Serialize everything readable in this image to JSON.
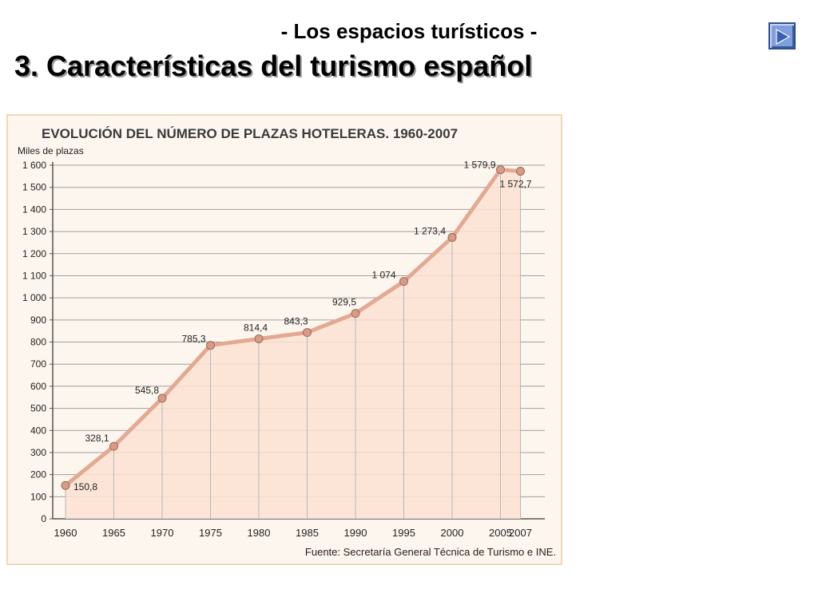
{
  "header": {
    "subtitle": "- Los espacios turísticos -",
    "title": "3. Características del turismo español"
  },
  "nav": {
    "icon": "play-forward-icon"
  },
  "chart_data": {
    "type": "area",
    "title": "EVOLUCIÓN DEL NÚMERO DE PLAZAS HOTELERAS. 1960-2007",
    "ylabel": "Miles de plazas",
    "xlabel": "",
    "source": "Fuente: Secretaría General Técnica de Turismo e INE.",
    "x": [
      1960,
      1965,
      1970,
      1975,
      1980,
      1985,
      1990,
      1995,
      2000,
      2005,
      2007
    ],
    "x_tick_labels": [
      "1960",
      "1965",
      "1970",
      "1975",
      "1980",
      "1985",
      "1990",
      "1995",
      "2000",
      "2005",
      "2007"
    ],
    "values": [
      150.8,
      328.1,
      545.8,
      785.3,
      814.4,
      843.3,
      929.5,
      1074,
      1273.4,
      1579.9,
      1572.7
    ],
    "data_labels": [
      "150,8",
      "328,1",
      "545,8",
      "785,3",
      "814,4",
      "843,3",
      "929,5",
      "1 074",
      "1 273,4",
      "1 579,9",
      "1 572,7"
    ],
    "y_ticks": [
      0,
      100,
      200,
      300,
      400,
      500,
      600,
      700,
      800,
      900,
      1000,
      1100,
      1200,
      1300,
      1400,
      1500,
      1600
    ],
    "y_tick_labels": [
      "0",
      "100",
      "200",
      "300",
      "400",
      "500",
      "600",
      "700",
      "800",
      "900",
      "1 000",
      "1 100",
      "1 200",
      "1 300",
      "1 400",
      "1 500",
      "1 600"
    ],
    "ylim": [
      0,
      1600
    ],
    "grid": true,
    "colors": {
      "line": "#e3a993",
      "fill": "#fbe2d2",
      "marker": "#d99a86",
      "grid": "#9e9e9e"
    }
  }
}
